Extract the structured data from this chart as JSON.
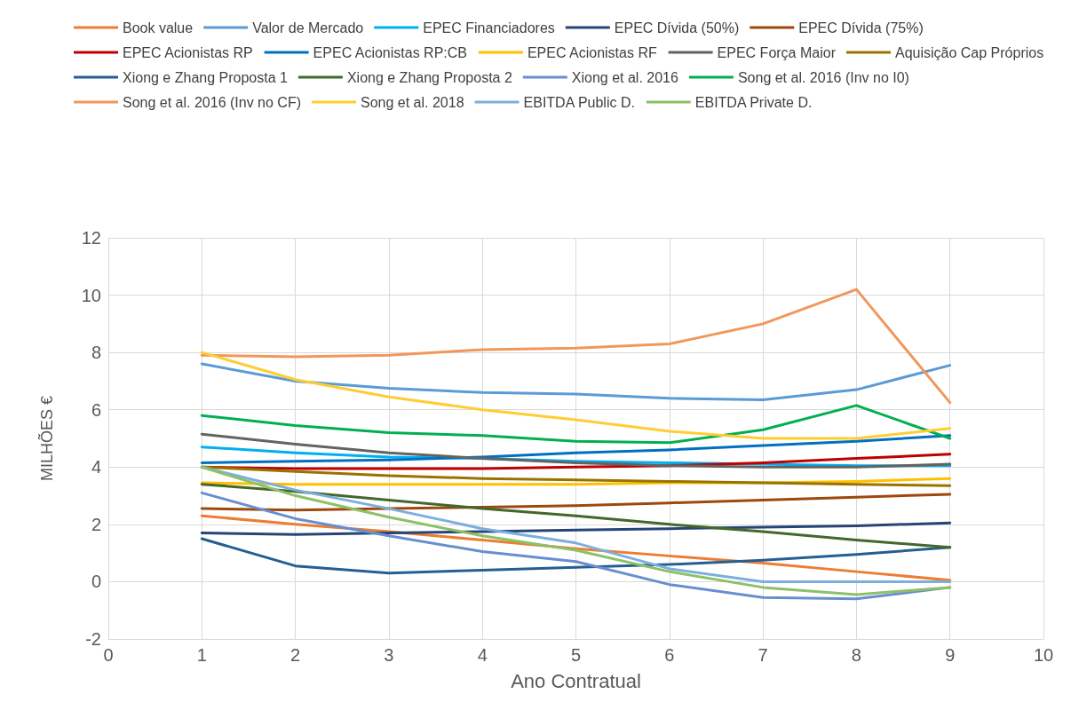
{
  "chart_data": {
    "type": "line",
    "xlabel": "Ano Contratual",
    "ylabel": "MILHÕES €",
    "x": [
      1,
      2,
      3,
      4,
      5,
      6,
      7,
      8,
      9
    ],
    "xlim": [
      0,
      10
    ],
    "xticks": [
      0,
      1,
      2,
      3,
      4,
      5,
      6,
      7,
      8,
      9,
      10
    ],
    "ylim": [
      -2,
      12
    ],
    "yticks": [
      -2,
      0,
      2,
      4,
      6,
      8,
      10,
      12
    ],
    "grid": true,
    "legend": "top",
    "marker": "none",
    "line_style": "solid",
    "series": [
      {
        "name": "Book value",
        "color": "#ed7d31",
        "values": [
          2.3,
          2.0,
          1.75,
          1.45,
          1.15,
          0.9,
          0.65,
          0.35,
          0.05
        ]
      },
      {
        "name": "Valor de Mercado",
        "color": "#5b9bd5",
        "values": [
          7.6,
          7.0,
          6.75,
          6.6,
          6.55,
          6.4,
          6.35,
          6.7,
          7.55
        ]
      },
      {
        "name": "EPEC Financiadores",
        "color": "#00b0f0",
        "values": [
          4.7,
          4.5,
          4.35,
          4.3,
          4.2,
          4.15,
          4.1,
          4.05,
          4.05
        ]
      },
      {
        "name": "EPEC Dívida (50%)",
        "color": "#264478",
        "values": [
          1.7,
          1.65,
          1.7,
          1.75,
          1.8,
          1.85,
          1.9,
          1.95,
          2.05
        ]
      },
      {
        "name": "EPEC Dívida (75%)",
        "color": "#9e480e",
        "values": [
          2.55,
          2.5,
          2.55,
          2.6,
          2.65,
          2.75,
          2.85,
          2.95,
          3.05
        ]
      },
      {
        "name": "EPEC Acionistas RP",
        "color": "#c00000",
        "values": [
          4.0,
          3.95,
          3.95,
          3.95,
          4.0,
          4.05,
          4.15,
          4.3,
          4.45
        ]
      },
      {
        "name": "EPEC Acionistas RP:CB",
        "color": "#0070c0",
        "values": [
          4.15,
          4.2,
          4.25,
          4.35,
          4.5,
          4.6,
          4.75,
          4.9,
          5.1
        ]
      },
      {
        "name": "EPEC Acionistas RF",
        "color": "#ffc000",
        "values": [
          3.45,
          3.4,
          3.4,
          3.4,
          3.4,
          3.45,
          3.45,
          3.5,
          3.6
        ]
      },
      {
        "name": "EPEC Força Maior",
        "color": "#636363",
        "values": [
          5.15,
          4.8,
          4.5,
          4.3,
          4.15,
          4.05,
          4.0,
          4.0,
          4.1
        ]
      },
      {
        "name": "Aquisição Cap Próprios",
        "color": "#997300",
        "values": [
          4.0,
          3.85,
          3.7,
          3.6,
          3.55,
          3.5,
          3.45,
          3.4,
          3.35
        ]
      },
      {
        "name": "Xiong e Zhang Proposta 1",
        "color": "#255e91",
        "values": [
          1.5,
          0.55,
          0.3,
          0.4,
          0.5,
          0.6,
          0.75,
          0.95,
          1.2
        ]
      },
      {
        "name": "Xiong e Zhang Proposta 2",
        "color": "#43682b",
        "values": [
          3.4,
          3.15,
          2.85,
          2.55,
          2.3,
          2.0,
          1.75,
          1.45,
          1.2
        ]
      },
      {
        "name": "Xiong et al. 2016",
        "color": "#698ed0",
        "values": [
          3.1,
          2.2,
          1.6,
          1.05,
          0.7,
          -0.1,
          -0.55,
          -0.6,
          -0.2
        ]
      },
      {
        "name": "Song et al. 2016 (Inv no I0)",
        "color": "#00b050",
        "values": [
          5.8,
          5.45,
          5.2,
          5.1,
          4.9,
          4.85,
          5.3,
          6.15,
          5.0
        ]
      },
      {
        "name": "Song et al. 2016 (Inv no CF)",
        "color": "#f1975a",
        "values": [
          7.9,
          7.85,
          7.9,
          8.1,
          8.15,
          8.3,
          9.0,
          10.2,
          6.25
        ]
      },
      {
        "name": "Song et al. 2018",
        "color": "#ffcd33",
        "values": [
          8.0,
          7.05,
          6.45,
          6.0,
          5.65,
          5.25,
          5.0,
          5.0,
          5.35
        ]
      },
      {
        "name": "EBITDA Public D.",
        "color": "#7cafdd",
        "values": [
          4.0,
          3.2,
          2.55,
          1.85,
          1.35,
          0.45,
          0.0,
          0.0,
          0.0
        ]
      },
      {
        "name": "EBITDA Private D.",
        "color": "#8cc168",
        "values": [
          4.0,
          3.0,
          2.25,
          1.6,
          1.1,
          0.35,
          -0.2,
          -0.45,
          -0.2
        ]
      }
    ]
  }
}
